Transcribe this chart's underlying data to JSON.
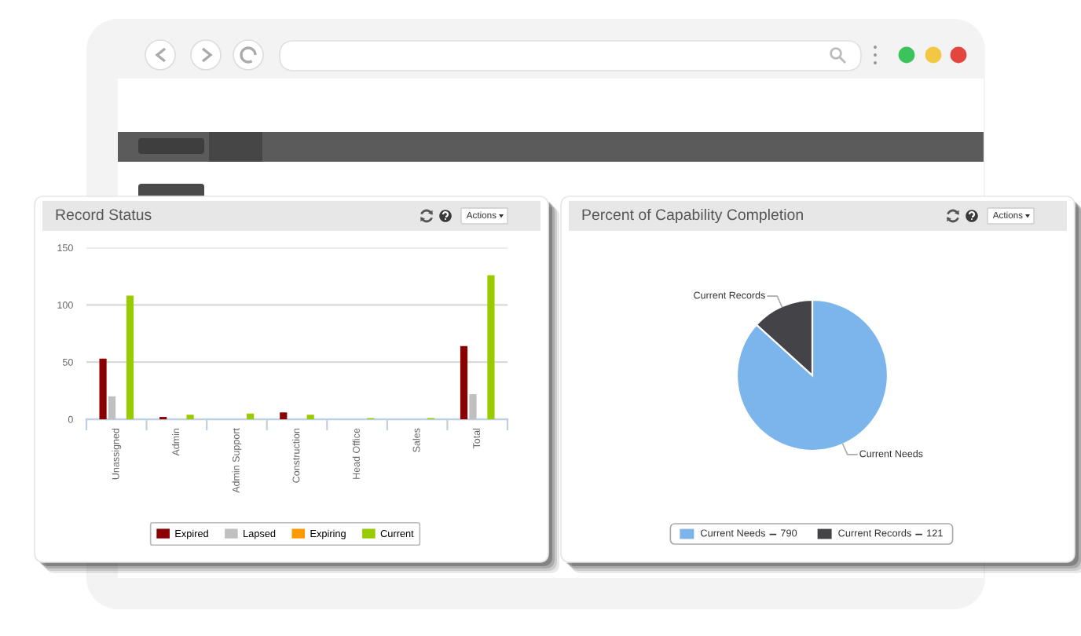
{
  "chart_data": [
    {
      "type": "bar",
      "title": "Record Status",
      "categories": [
        "Unassigned",
        "Admin",
        "Admin Support",
        "Construction",
        "Head Office",
        "Sales",
        "Total"
      ],
      "series": [
        {
          "name": "Expired",
          "color": "#8b0000",
          "values": [
            53,
            2,
            0,
            6,
            0,
            0,
            64
          ]
        },
        {
          "name": "Lapsed",
          "color": "#c0c0c0",
          "values": [
            20,
            0,
            0,
            0,
            0,
            0,
            22
          ]
        },
        {
          "name": "Expiring",
          "color": "#ff9900",
          "values": [
            0,
            0,
            0,
            0,
            0,
            0,
            0
          ]
        },
        {
          "name": "Current",
          "color": "#99cc00",
          "values": [
            108,
            4,
            5,
            4,
            1,
            1,
            126
          ]
        }
      ],
      "ylim": [
        0,
        150
      ],
      "yticks": [
        0,
        50,
        100,
        150
      ],
      "grid": "y",
      "legend": "bottom",
      "annotations": [
        "Actions"
      ]
    },
    {
      "type": "pie",
      "title": "Percent of Capability Completion",
      "categories": [
        "Current Needs",
        "Current Records"
      ],
      "values": [
        790,
        121
      ],
      "colors": [
        "#7cb5ec",
        "#434348"
      ],
      "value_labels": [
        "790",
        "121"
      ],
      "legend": "bottom",
      "annotations": [
        "Actions"
      ]
    }
  ]
}
